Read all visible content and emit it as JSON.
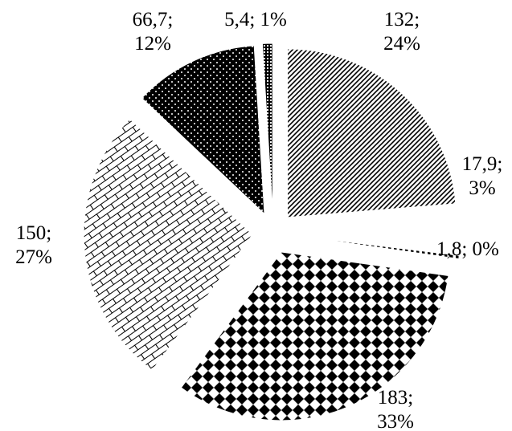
{
  "chart_data": {
    "type": "pie",
    "slices": [
      {
        "value": 132,
        "percent": "24%",
        "label_line1": "132;",
        "label_line2": "24%",
        "pattern": "diagonal-hatch"
      },
      {
        "value": 17.9,
        "percent": "3%",
        "label_line1": "17,9;",
        "label_line2": "3%",
        "pattern": "white"
      },
      {
        "value": 1.8,
        "percent": "0%",
        "label_line1": "1,8; 0%",
        "label_line2": "",
        "pattern": "vertical-stripes"
      },
      {
        "value": 183,
        "percent": "33%",
        "label_line1": "183;",
        "label_line2": "33%",
        "pattern": "checkerboard-diamond"
      },
      {
        "value": 150,
        "percent": "27%",
        "label_line1": "150;",
        "label_line2": "27%",
        "pattern": "brick"
      },
      {
        "value": 66.7,
        "percent": "12%",
        "label_line1": "66,7;",
        "label_line2": "12%",
        "pattern": "black-dots"
      },
      {
        "value": 5.4,
        "percent": "1%",
        "label_line1": "5,4; 1%",
        "label_line2": "",
        "pattern": "grid-dots"
      }
    ],
    "exploded": true,
    "legend": "none",
    "title": ""
  }
}
